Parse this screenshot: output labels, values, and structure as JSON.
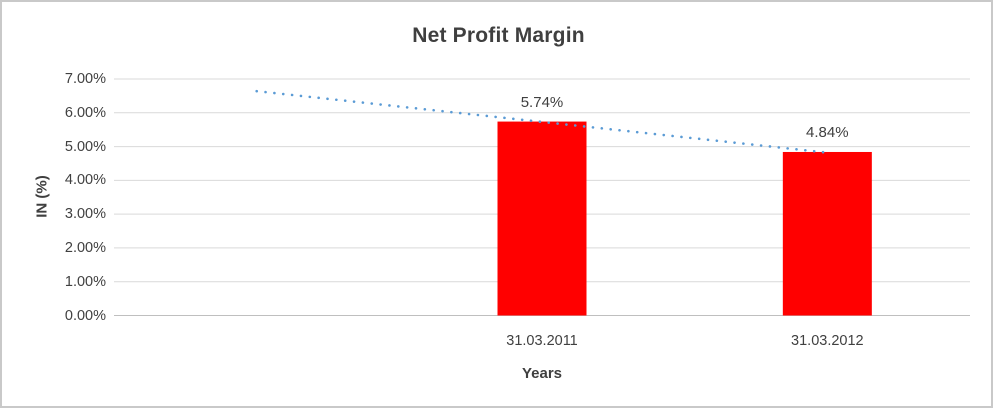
{
  "chart_data": {
    "type": "bar",
    "title": "Net Profit Margin",
    "xlabel": "Years",
    "ylabel": "IN (%)",
    "categories": [
      "31.03.2011",
      "31.03.2012"
    ],
    "values": [
      5.74,
      4.84
    ],
    "data_labels": [
      "5.74%",
      "4.84%"
    ],
    "ylim": [
      0,
      7
    ],
    "ytick_labels": [
      "0.00%",
      "1.00%",
      "2.00%",
      "3.00%",
      "4.00%",
      "5.00%",
      "6.00%",
      "7.00%"
    ],
    "grid": "horizontal-on",
    "legend": "none",
    "trendline": {
      "style": "dotted-linear",
      "start_value": 6.64,
      "end_value": 4.82,
      "extent": "from one period before first category to last category"
    },
    "colors": {
      "bar": "#ff0000",
      "trendline": "#5b9bd5",
      "gridline": "#d9d9d9",
      "axis_line": "#bfbfbf",
      "title_text": "#3f3f3f",
      "tick_text": "#404040",
      "frame_border": "#c9c9c9"
    }
  }
}
